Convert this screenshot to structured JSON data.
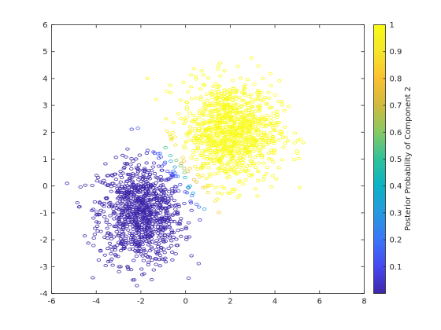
{
  "chart_data": {
    "type": "scatter",
    "title": "",
    "xlabel": "",
    "ylabel": "",
    "xlim": [
      -6,
      8
    ],
    "ylim": [
      -4,
      6
    ],
    "xticks": [
      "-6",
      "-4",
      "-2",
      "0",
      "2",
      "4",
      "6",
      "8"
    ],
    "yticks": [
      "-4",
      "-3",
      "-2",
      "-1",
      "0",
      "1",
      "2",
      "3",
      "4",
      "5",
      "6"
    ],
    "grid": false,
    "marker": "open-circle",
    "series": [
      {
        "cluster_center": [
          -2,
          -1
        ],
        "cluster_spread": [
          0.95,
          0.95
        ],
        "approx_points": 1000,
        "posterior_probability": 0.0
      },
      {
        "cluster_center": [
          2,
          2
        ],
        "cluster_spread": [
          1.1,
          0.95
        ],
        "approx_points": 1000,
        "posterior_probability": 1.0
      }
    ],
    "colorbar": {
      "label": "Posterior Probability of Component 2",
      "range": [
        0,
        1
      ],
      "ticks": [
        "0.1",
        "0.2",
        "0.3",
        "0.4",
        "0.5",
        "0.6",
        "0.7",
        "0.8",
        "0.9",
        "1"
      ],
      "colormap": [
        "#3e26a8",
        "#4748f0",
        "#3a76f7",
        "#2799e0",
        "#0bb2c5",
        "#2ec29a",
        "#86c964",
        "#d0ba3e",
        "#fbc032",
        "#f5e52a",
        "#f9fb15"
      ]
    }
  }
}
